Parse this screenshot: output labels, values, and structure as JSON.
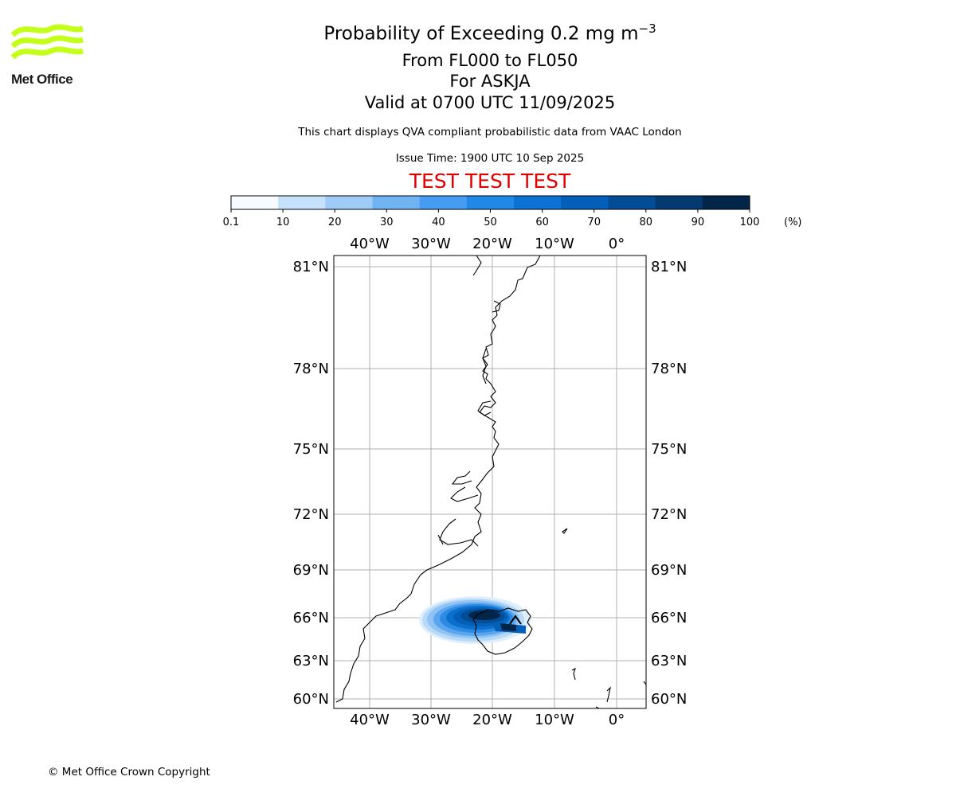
{
  "logo": {
    "icon": "met-office-wave-logo-icon",
    "text": "Met Office",
    "wave_color": "#c4ff1c",
    "text_color": "#1a1a1a"
  },
  "header": {
    "title_main": "Probability of Exceeding 0.2 mg m",
    "title_superscript": "−3",
    "line_2": "From FL000 to FL050",
    "line_3": "For ASKJA",
    "line_4": "Valid at 0700 UTC 11/09/2025",
    "qva_note": "This chart displays QVA compliant probabilistic data from VAAC London",
    "issue_time": "Issue Time: 1900 UTC 10 Sep 2025",
    "test_banner": "TEST TEST TEST",
    "test_color": "#e00000"
  },
  "colorbar": {
    "tick_labels": [
      "0.1",
      "10",
      "20",
      "30",
      "40",
      "50",
      "60",
      "70",
      "80",
      "90",
      "100"
    ],
    "unit_label": "(%)",
    "colors": [
      "#f7fbff",
      "#c6e1fb",
      "#9ecbf7",
      "#70b3f3",
      "#459cf0",
      "#2089e8",
      "#0c72d5",
      "#045fb8",
      "#034d97",
      "#033b70",
      "#02254a"
    ]
  },
  "map": {
    "lon_labels": [
      "40°W",
      "30°W",
      "20°W",
      "10°W",
      "0°"
    ],
    "lat_labels": [
      "81°N",
      "78°N",
      "75°N",
      "72°N",
      "69°N",
      "66°N",
      "63°N",
      "60°N"
    ],
    "gridline_color": "#b0b0b0",
    "volcano_marker_icon": "volcano-triangle-icon",
    "ash_plume_description": "probability-shaded-ash-cloud"
  },
  "footer": {
    "copyright": "© Met Office Crown Copyright"
  }
}
